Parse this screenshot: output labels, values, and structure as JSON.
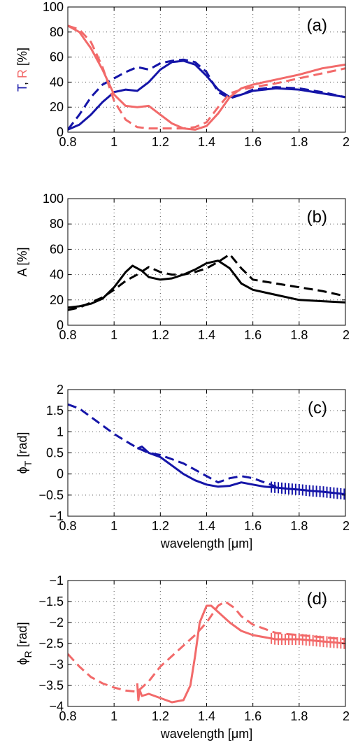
{
  "colors": {
    "blue": "#1515a8",
    "red": "#f26a6a",
    "black": "#000000",
    "grid": "#555555"
  },
  "chart_data": [
    {
      "type": "line",
      "panel": "(a)",
      "ylabel_parts": [
        {
          "text": "T",
          "color": "#1515a8"
        },
        {
          "text": ", ",
          "color": "#000000"
        },
        {
          "text": "R",
          "color": "#f26a6a"
        },
        {
          "text": "  [%]",
          "color": "#000000"
        }
      ],
      "xlabel": "",
      "xlim": [
        0.8,
        2
      ],
      "ylim": [
        0,
        100
      ],
      "xticks": [
        "0.8",
        "1",
        "1.2",
        "1.4",
        "1.6",
        "1.8",
        "2"
      ],
      "yticks": [
        "0",
        "20",
        "40",
        "60",
        "80",
        "100"
      ],
      "grid": true,
      "series": [
        {
          "style": "solid",
          "color": "#1515a8",
          "x": [
            0.8,
            0.85,
            0.9,
            0.95,
            1.0,
            1.05,
            1.1,
            1.15,
            1.2,
            1.25,
            1.3,
            1.35,
            1.4,
            1.45,
            1.5,
            1.55,
            1.6,
            1.7,
            1.8,
            1.9,
            2.0
          ],
          "y": [
            2,
            6,
            14,
            24,
            32,
            34,
            33,
            40,
            50,
            56,
            57,
            54,
            45,
            34,
            28,
            30,
            33,
            35,
            34,
            31,
            28
          ]
        },
        {
          "style": "dashed",
          "color": "#1515a8",
          "x": [
            0.8,
            0.85,
            0.9,
            0.95,
            1.0,
            1.05,
            1.1,
            1.15,
            1.2,
            1.25,
            1.3,
            1.35,
            1.4,
            1.45,
            1.5,
            1.55,
            1.6,
            1.7,
            1.8,
            1.9,
            2.0
          ],
          "y": [
            2,
            14,
            28,
            38,
            43,
            48,
            52,
            50,
            55,
            57,
            58,
            56,
            48,
            32,
            27,
            30,
            34,
            36,
            35,
            32,
            28
          ]
        },
        {
          "style": "solid",
          "color": "#f26a6a",
          "x": [
            0.8,
            0.85,
            0.9,
            0.95,
            1.0,
            1.05,
            1.1,
            1.15,
            1.2,
            1.25,
            1.3,
            1.35,
            1.4,
            1.45,
            1.5,
            1.55,
            1.6,
            1.7,
            1.8,
            1.9,
            2.0
          ],
          "y": [
            85,
            80,
            67,
            50,
            30,
            21,
            20,
            21,
            14,
            7,
            3,
            2,
            5,
            15,
            28,
            35,
            38,
            42,
            46,
            51,
            54
          ]
        },
        {
          "style": "dashed",
          "color": "#f26a6a",
          "x": [
            0.8,
            0.85,
            0.9,
            0.95,
            1.0,
            1.05,
            1.1,
            1.15,
            1.2,
            1.25,
            1.3,
            1.35,
            1.4,
            1.45,
            1.5,
            1.55,
            1.6,
            1.7,
            1.8,
            1.9,
            2.0
          ],
          "y": [
            85,
            82,
            72,
            52,
            25,
            10,
            4,
            3,
            3,
            3,
            3,
            4,
            8,
            20,
            31,
            34,
            36,
            39,
            43,
            47,
            51
          ]
        }
      ]
    },
    {
      "type": "line",
      "panel": "(b)",
      "ylabel": "A  [%]",
      "xlabel": "",
      "xlim": [
        0.8,
        2
      ],
      "ylim": [
        0,
        100
      ],
      "xticks": [
        "0.8",
        "1",
        "1.2",
        "1.4",
        "1.6",
        "1.8",
        "2"
      ],
      "yticks": [
        "0",
        "20",
        "40",
        "60",
        "80",
        "100"
      ],
      "grid": true,
      "series": [
        {
          "style": "solid",
          "color": "#000000",
          "x": [
            0.8,
            0.85,
            0.9,
            0.95,
            1.0,
            1.05,
            1.08,
            1.12,
            1.15,
            1.2,
            1.25,
            1.3,
            1.35,
            1.4,
            1.45,
            1.5,
            1.55,
            1.6,
            1.7,
            1.8,
            1.9,
            2.0
          ],
          "y": [
            14,
            15,
            17,
            21,
            30,
            42,
            47,
            43,
            38,
            36,
            37,
            40,
            44,
            49,
            51,
            45,
            33,
            28,
            24,
            20,
            19,
            18
          ]
        },
        {
          "style": "dashed",
          "color": "#000000",
          "x": [
            0.8,
            0.85,
            0.9,
            0.95,
            1.0,
            1.05,
            1.1,
            1.15,
            1.2,
            1.25,
            1.3,
            1.35,
            1.4,
            1.45,
            1.5,
            1.55,
            1.6,
            1.7,
            1.8,
            1.9,
            2.0
          ],
          "y": [
            12,
            14,
            18,
            22,
            28,
            35,
            40,
            46,
            42,
            40,
            40,
            42,
            45,
            50,
            56,
            45,
            36,
            33,
            30,
            27,
            23
          ]
        }
      ]
    },
    {
      "type": "line",
      "panel": "(c)",
      "ylabel": "ϕ",
      "ylabel_sub": "T",
      "ylabel_unit": "  [rad]",
      "xlabel": "wavelength [μm]",
      "xlim": [
        0.8,
        2
      ],
      "ylim": [
        -1,
        2
      ],
      "xticks": [
        "0.8",
        "1",
        "1.2",
        "1.4",
        "1.6",
        "1.8",
        "2"
      ],
      "yticks": [
        "−1",
        "−0.5",
        "0",
        "0.5",
        "1",
        "1.5",
        "2"
      ],
      "grid": true,
      "series": [
        {
          "style": "solid",
          "color": "#1515a8",
          "x": [
            1.1,
            1.12,
            1.15,
            1.2,
            1.25,
            1.3,
            1.35,
            1.4,
            1.45,
            1.5,
            1.55,
            1.6,
            1.65,
            1.7,
            1.75,
            1.8,
            1.85,
            1.9,
            1.95,
            2.0
          ],
          "y": [
            0.6,
            0.65,
            0.5,
            0.4,
            0.2,
            0.0,
            -0.15,
            -0.25,
            -0.3,
            -0.28,
            -0.2,
            -0.25,
            -0.3,
            -0.32,
            -0.35,
            -0.37,
            -0.4,
            -0.42,
            -0.45,
            -0.48
          ],
          "tick_marks_from_x": 1.68
        },
        {
          "style": "dashed",
          "color": "#1515a8",
          "x": [
            0.8,
            0.85,
            0.9,
            0.95,
            1.0,
            1.05,
            1.1,
            1.15,
            1.2,
            1.25,
            1.3,
            1.35,
            1.4,
            1.45,
            1.5,
            1.55,
            1.6,
            1.65,
            1.7
          ],
          "y": [
            1.65,
            1.55,
            1.35,
            1.15,
            0.95,
            0.78,
            0.62,
            0.5,
            0.45,
            0.35,
            0.25,
            0.1,
            -0.05,
            -0.2,
            -0.1,
            -0.05,
            -0.1,
            -0.2,
            -0.3
          ]
        }
      ]
    },
    {
      "type": "line",
      "panel": "(d)",
      "ylabel": "ϕ",
      "ylabel_sub": "R",
      "ylabel_unit": "  [rad]",
      "xlabel": "wavelength [μm]",
      "xlim": [
        0.8,
        2
      ],
      "ylim": [
        -4,
        -1
      ],
      "xticks": [
        "0.8",
        "1",
        "1.2",
        "1.4",
        "1.6",
        "1.8",
        "2"
      ],
      "yticks": [
        "−4",
        "−3.5",
        "−3",
        "−2.5",
        "−2",
        "−1.5",
        "−1"
      ],
      "grid": true,
      "series": [
        {
          "style": "solid",
          "color": "#f26a6a",
          "x": [
            1.1,
            1.105,
            1.11,
            1.12,
            1.15,
            1.2,
            1.25,
            1.3,
            1.33,
            1.35,
            1.37,
            1.4,
            1.42,
            1.45,
            1.5,
            1.55,
            1.6,
            1.65,
            1.7,
            1.8,
            1.9,
            2.0
          ],
          "y": [
            -3.45,
            -3.85,
            -3.6,
            -3.75,
            -3.7,
            -3.8,
            -3.9,
            -3.85,
            -3.5,
            -2.8,
            -2.0,
            -1.6,
            -1.6,
            -1.75,
            -2.0,
            -2.2,
            -2.3,
            -2.35,
            -2.4,
            -2.4,
            -2.45,
            -2.5
          ],
          "tick_marks_from_x": 1.68
        },
        {
          "style": "dashed",
          "color": "#f26a6a",
          "x": [
            0.8,
            0.85,
            0.9,
            0.95,
            1.0,
            1.05,
            1.1,
            1.15,
            1.2,
            1.25,
            1.3,
            1.35,
            1.4,
            1.45,
            1.48,
            1.52,
            1.55,
            1.6,
            1.7,
            1.8,
            1.9,
            2.0
          ],
          "y": [
            -2.75,
            -3.05,
            -3.3,
            -3.45,
            -3.55,
            -3.62,
            -3.65,
            -3.4,
            -3.05,
            -2.8,
            -2.55,
            -2.3,
            -2.0,
            -1.6,
            -1.5,
            -1.65,
            -1.85,
            -2.05,
            -2.25,
            -2.3,
            -2.35,
            -2.4
          ]
        }
      ]
    }
  ]
}
